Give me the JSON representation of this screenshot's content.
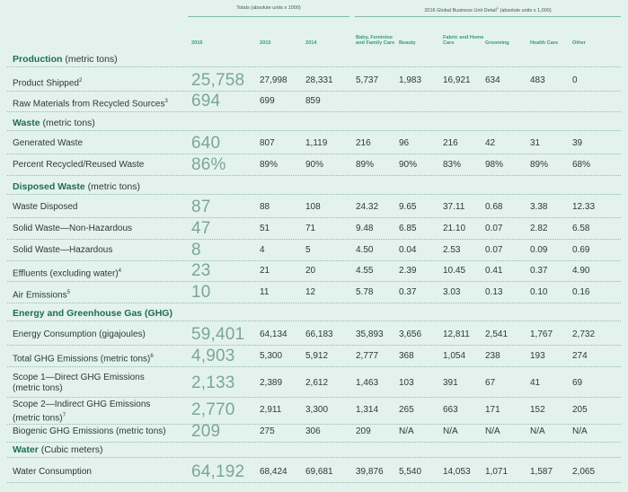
{
  "header": {
    "totals_label": "Totals (absolute units x 1000)",
    "detail_label": "2016 Global Business Unit Detail",
    "detail_sup": "1",
    "detail_suffix": " (absolute units x 1,000)",
    "columns": [
      "2016",
      "2015",
      "2014",
      "Baby, Feminine and Family Care",
      "Beauty",
      "Fabric and Home Care",
      "Grooming",
      "Health Care",
      "Other"
    ]
  },
  "sections": [
    {
      "title": "Production",
      "unit": " (metric tons)"
    },
    {
      "title": "Waste",
      "unit": " (metric tons)"
    },
    {
      "title": "Disposed Waste",
      "unit": " (metric tons)"
    },
    {
      "title": "Energy and Greenhouse Gas (GHG)",
      "unit": ""
    },
    {
      "title": "Water",
      "unit": " (Cubic meters)"
    }
  ],
  "rows": [
    {
      "label": "Product Shipped",
      "sup": "2",
      "v2016": "25,758",
      "v2015": "27,998",
      "v2014": "28,331",
      "baby": "5,737",
      "beauty": "1,983",
      "fabric": "16,921",
      "grooming": "634",
      "health": "483",
      "other": "0"
    },
    {
      "label": "Raw Materials from Recycled Sources",
      "sup": "3",
      "v2016": "694",
      "v2015": "699",
      "v2014": "859",
      "baby": "",
      "beauty": "",
      "fabric": "",
      "grooming": "",
      "health": "",
      "other": ""
    },
    {
      "label": "Generated Waste",
      "sup": "",
      "v2016": "640",
      "v2015": "807",
      "v2014": "1,119",
      "baby": "216",
      "beauty": "96",
      "fabric": "216",
      "grooming": "42",
      "health": "31",
      "other": "39"
    },
    {
      "label": "Percent Recycled/Reused Waste",
      "sup": "",
      "v2016": "86%",
      "v2015": "89%",
      "v2014": "90%",
      "baby": "89%",
      "beauty": "90%",
      "fabric": "83%",
      "grooming": "98%",
      "health": "89%",
      "other": "68%"
    },
    {
      "label": "Waste Disposed",
      "sup": "",
      "v2016": "87",
      "v2015": "88",
      "v2014": "108",
      "baby": "24.32",
      "beauty": "9.65",
      "fabric": "37.11",
      "grooming": "0.68",
      "health": "3.38",
      "other": "12.33"
    },
    {
      "label": "Solid Waste—Non-Hazardous",
      "sup": "",
      "v2016": "47",
      "v2015": "51",
      "v2014": "71",
      "baby": "9.48",
      "beauty": "6.85",
      "fabric": "21.10",
      "grooming": "0.07",
      "health": "2.82",
      "other": "6.58"
    },
    {
      "label": "Solid Waste—Hazardous",
      "sup": "",
      "v2016": "8",
      "v2015": "4",
      "v2014": "5",
      "baby": "4.50",
      "beauty": "0.04",
      "fabric": "2.53",
      "grooming": "0.07",
      "health": "0.09",
      "other": "0.69"
    },
    {
      "label": "Effluents (excluding water)",
      "sup": "4",
      "v2016": "23",
      "v2015": "21",
      "v2014": "20",
      "baby": "4.55",
      "beauty": "2.39",
      "fabric": "10.45",
      "grooming": "0.41",
      "health": "0.37",
      "other": "4.90"
    },
    {
      "label": "Air Emissions",
      "sup": "5",
      "v2016": "10",
      "v2015": "11",
      "v2014": "12",
      "baby": "5.78",
      "beauty": "0.37",
      "fabric": "3.03",
      "grooming": "0.13",
      "health": "0.10",
      "other": "0.16"
    },
    {
      "label": "Energy Consumption (gigajoules)",
      "sup": "",
      "v2016": "59,401",
      "v2015": "64,134",
      "v2014": "66,183",
      "baby": "35,893",
      "beauty": "3,656",
      "fabric": "12,811",
      "grooming": "2,541",
      "health": "1,767",
      "other": "2,732"
    },
    {
      "label": "Total GHG Emissions (metric tons)",
      "sup": "6",
      "v2016": "4,903",
      "v2015": "5,300",
      "v2014": "5,912",
      "baby": "2,777",
      "beauty": "368",
      "fabric": "1,054",
      "grooming": "238",
      "health": "193",
      "other": "274"
    },
    {
      "label": "Scope 1—Direct GHG Emissions",
      "label2": "(metric tons)",
      "sup": "",
      "v2016": "2,133",
      "v2015": "2,389",
      "v2014": "2,612",
      "baby": "1,463",
      "beauty": "103",
      "fabric": "391",
      "grooming": "67",
      "health": "41",
      "other": "69"
    },
    {
      "label": "Scope 2—Indirect GHG Emissions",
      "label2": "(metric tons)",
      "sup": "7",
      "v2016": "2,770",
      "v2015": "2,911",
      "v2014": "3,300",
      "baby": "1,314",
      "beauty": "265",
      "fabric": "663",
      "grooming": "171",
      "health": "152",
      "other": "205"
    },
    {
      "label": "Biogenic GHG Emissions (metric tons)",
      "sup": "",
      "v2016": "209",
      "v2015": "275",
      "v2014": "306",
      "baby": "209",
      "beauty": "N/A",
      "fabric": "N/A",
      "grooming": "N/A",
      "health": "N/A",
      "other": "N/A"
    },
    {
      "label": "Water Consumption",
      "sup": "",
      "v2016": "64,192",
      "v2015": "68,424",
      "v2014": "69,681",
      "baby": "39,876",
      "beauty": "5,540",
      "fabric": "14,053",
      "grooming": "1,071",
      "health": "1,587",
      "other": "2,065"
    }
  ]
}
